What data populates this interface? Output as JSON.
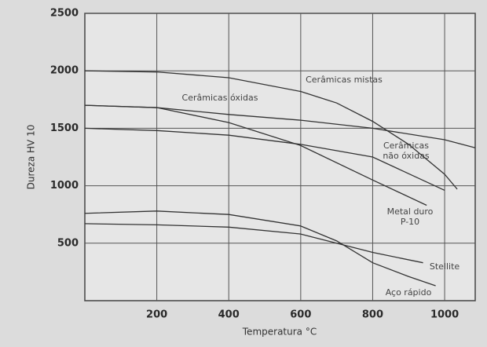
{
  "chart_data": {
    "type": "line",
    "x_label": "Temperatura °C",
    "y_label": "Dureza HV 10",
    "xlim": [
      0,
      1085
    ],
    "ylim": [
      0,
      2500
    ],
    "xticks": [
      200,
      400,
      600,
      800,
      1000
    ],
    "yticks": [
      500,
      1000,
      1500,
      2000,
      2500
    ],
    "grid": true,
    "series": [
      {
        "name": "Cerâmicas mistas",
        "color": "#333333",
        "x": [
          0,
          200,
          400,
          600,
          700,
          800,
          900,
          1000,
          1035
        ],
        "values": [
          2000,
          1990,
          1940,
          1820,
          1720,
          1560,
          1360,
          1100,
          970
        ]
      },
      {
        "name": "Cerâmicas óxidas",
        "color": "#333333",
        "x": [
          0,
          200,
          400,
          600,
          800,
          1000,
          1085
        ],
        "values": [
          1700,
          1680,
          1620,
          1570,
          1500,
          1400,
          1330
        ]
      },
      {
        "name": "Metal duro P-10",
        "color": "#333333",
        "x": [
          0,
          200,
          400,
          600,
          800,
          950
        ],
        "values": [
          1700,
          1680,
          1550,
          1350,
          1050,
          830
        ]
      },
      {
        "name": "Cerâmicas não óxidas",
        "color": "#333333",
        "x": [
          0,
          200,
          400,
          600,
          800,
          1000
        ],
        "values": [
          1500,
          1480,
          1440,
          1360,
          1250,
          960
        ]
      },
      {
        "name": "Stellite",
        "color": "#333333",
        "x": [
          0,
          200,
          400,
          600,
          800,
          940
        ],
        "values": [
          670,
          660,
          640,
          580,
          420,
          330
        ]
      },
      {
        "name": "Aço rápido",
        "color": "#333333",
        "x": [
          0,
          200,
          400,
          600,
          700,
          800,
          900,
          975
        ],
        "values": [
          760,
          780,
          750,
          650,
          520,
          330,
          210,
          130
        ]
      }
    ]
  }
}
